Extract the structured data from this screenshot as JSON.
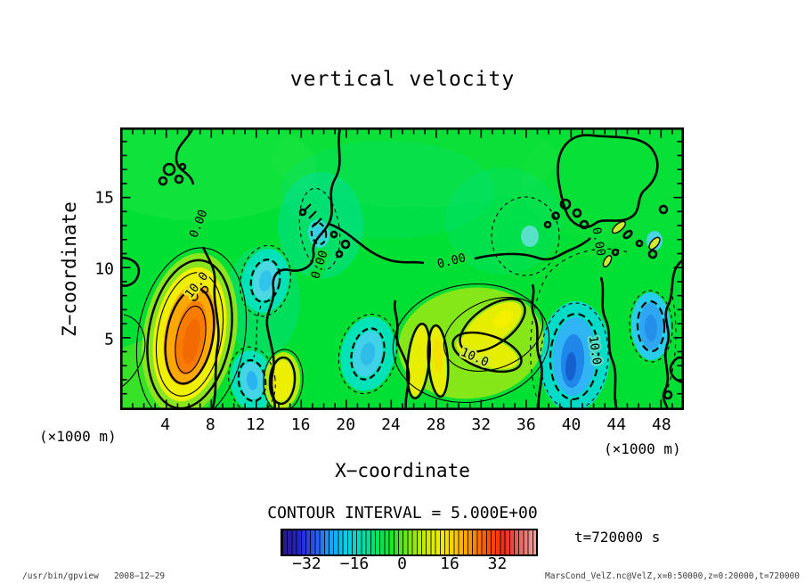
{
  "title": "vertical velocity",
  "axes": {
    "x": {
      "label": "X−coordinate",
      "unit": "(×1000 m)",
      "ticks": [
        4,
        8,
        12,
        16,
        20,
        24,
        28,
        32,
        36,
        40,
        44,
        48
      ]
    },
    "y": {
      "label": "Z−coordinate",
      "unit": "(×1000 m)",
      "ticks": [
        5,
        10,
        15
      ]
    }
  },
  "colorbar": {
    "caption": "CONTOUR INTERVAL = 5.000E+00",
    "ticks": [
      "−32",
      "−16",
      "0",
      "16",
      "32"
    ],
    "colors": [
      "#2a1a7e",
      "#2222c8",
      "#2a52f0",
      "#18a0f8",
      "#00cfe8",
      "#00ddb0",
      "#00e260",
      "#20e426",
      "#7ce80e",
      "#c8ea00",
      "#f0ee00",
      "#ffc400",
      "#ff8c00",
      "#ff5000",
      "#f02820",
      "#e86860",
      "#f4a0a0"
    ]
  },
  "annotations": {
    "time": "t=720000 s"
  },
  "footer": {
    "left": "/usr/bin/gpview   2008−12−29",
    "right": "MarsCond_VelZ.nc@VelZ,x=0:50000,z=0:20000,t=720000"
  },
  "plot": {
    "contour_labels": [
      "0.00",
      "0.00",
      "0.00",
      "0.00",
      "10.0",
      "10.0",
      "10.0"
    ]
  },
  "chart_data": {
    "type": "heatmap",
    "subtype": "filled-contour",
    "title": "vertical velocity",
    "xlabel": "X-coordinate (×1000 m)",
    "ylabel": "Z-coordinate (×1000 m)",
    "xlim": [
      0,
      50
    ],
    "ylim": [
      0,
      20
    ],
    "contour_interval": 5.0,
    "colorbar_ticks": [
      -32,
      -16,
      0,
      16,
      32
    ],
    "colorbar_range_approx": [
      -40,
      45
    ],
    "background_value_approx": 2,
    "features": [
      {
        "kind": "max",
        "x": 6.0,
        "z": 5.5,
        "value": 28,
        "note": "strong updraft, orange core, 10.0 contour labeled"
      },
      {
        "kind": "max",
        "x": 14.5,
        "z": 2.2,
        "value": 15,
        "note": "small yellow cell"
      },
      {
        "kind": "max",
        "x": 28.5,
        "z": 4.5,
        "value": 18,
        "note": "yellow butterfly-shaped cell, 10.0 contour labeled"
      },
      {
        "kind": "max",
        "x": 26.5,
        "z": 4.0,
        "value": 12,
        "note": "slim yellow lobes"
      },
      {
        "kind": "min",
        "x": 12.8,
        "z": 9.0,
        "value": -8,
        "note": "cyan cell, dashed contours"
      },
      {
        "kind": "min",
        "x": 11.5,
        "z": 2.0,
        "value": -9,
        "note": "cyan cell, dashed contours"
      },
      {
        "kind": "min",
        "x": 22.0,
        "z": 4.0,
        "value": -8,
        "note": "cyan cell, dashed contours"
      },
      {
        "kind": "min",
        "x": 17.5,
        "z": 12.5,
        "value": -6,
        "note": "weak cyan patch"
      },
      {
        "kind": "min",
        "x": 40.3,
        "z": 3.8,
        "value": -17,
        "note": "deep blue core, -10 contour labeled 10.0"
      },
      {
        "kind": "min",
        "x": 40.0,
        "z": 8.5,
        "value": -10,
        "note": "blue cell"
      },
      {
        "kind": "min",
        "x": 47.0,
        "z": 6.5,
        "value": -12,
        "note": "blue cell near right edge"
      }
    ],
    "zero_contour": "thick solid meandering lines labeled 0.00; negative contours dashed; positive thin/thick solid",
    "legend_position": "horizontal colorbar below plot",
    "grid": false
  }
}
